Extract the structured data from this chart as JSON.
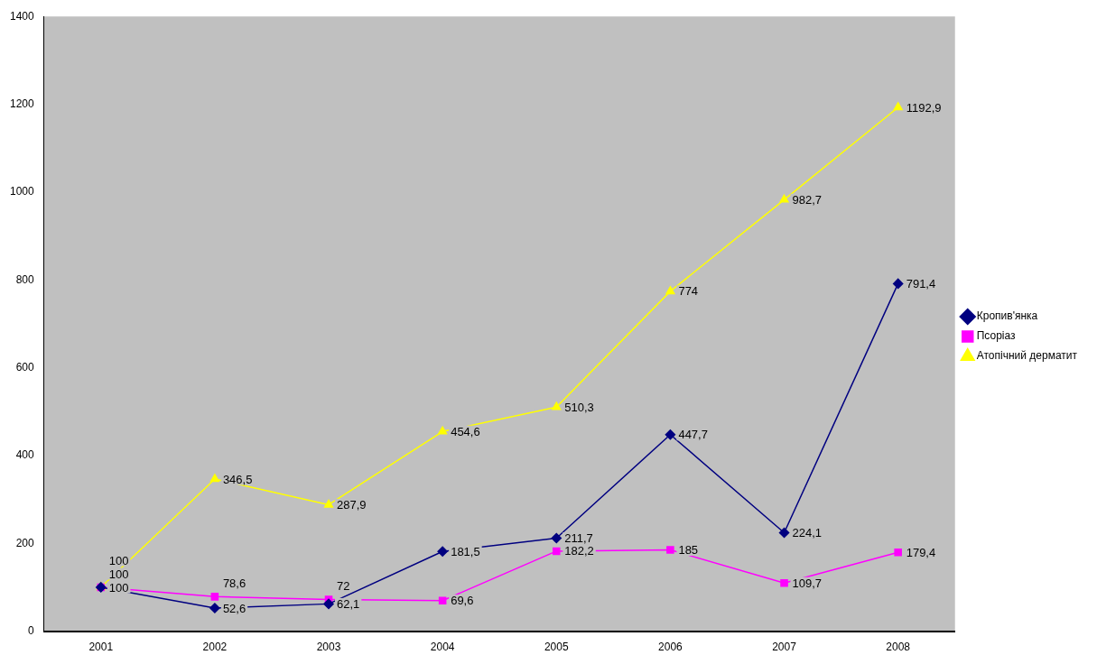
{
  "chart_data": {
    "type": "line",
    "categories": [
      "2001",
      "2002",
      "2003",
      "2004",
      "2005",
      "2006",
      "2007",
      "2008"
    ],
    "series": [
      {
        "name": "Кропив'янка",
        "color": "#000080",
        "marker": "diamond",
        "values": [
          100,
          52.6,
          62.1,
          181.5,
          211.7,
          447.7,
          224.1,
          791.4
        ],
        "value_labels": [
          "100",
          "52,6",
          "62,1",
          "181,5",
          "211,7",
          "447,7",
          "224,1",
          "791,4"
        ]
      },
      {
        "name": "Псоріаз",
        "color": "#ff00ff",
        "marker": "square",
        "values": [
          100,
          78.6,
          72,
          69.6,
          182.2,
          185,
          109.7,
          179.4
        ],
        "value_labels": [
          "100",
          "78,6",
          "72",
          "69,6",
          "182,2",
          "185",
          "109,7",
          "179,4"
        ]
      },
      {
        "name": "Атопічний дерматит",
        "color": "#ffff00",
        "marker": "triangle",
        "values": [
          100,
          346.5,
          287.9,
          454.6,
          510.3,
          774,
          982.7,
          1192.9
        ],
        "value_labels": [
          "100",
          "346,5",
          "287,9",
          "454,6",
          "510,3",
          "774",
          "982,7",
          "1192,9"
        ]
      }
    ],
    "ylim": [
      0,
      1400
    ],
    "yticks": [
      0,
      200,
      400,
      600,
      800,
      1000,
      1200,
      1400
    ],
    "grid": false,
    "legend": "right"
  }
}
